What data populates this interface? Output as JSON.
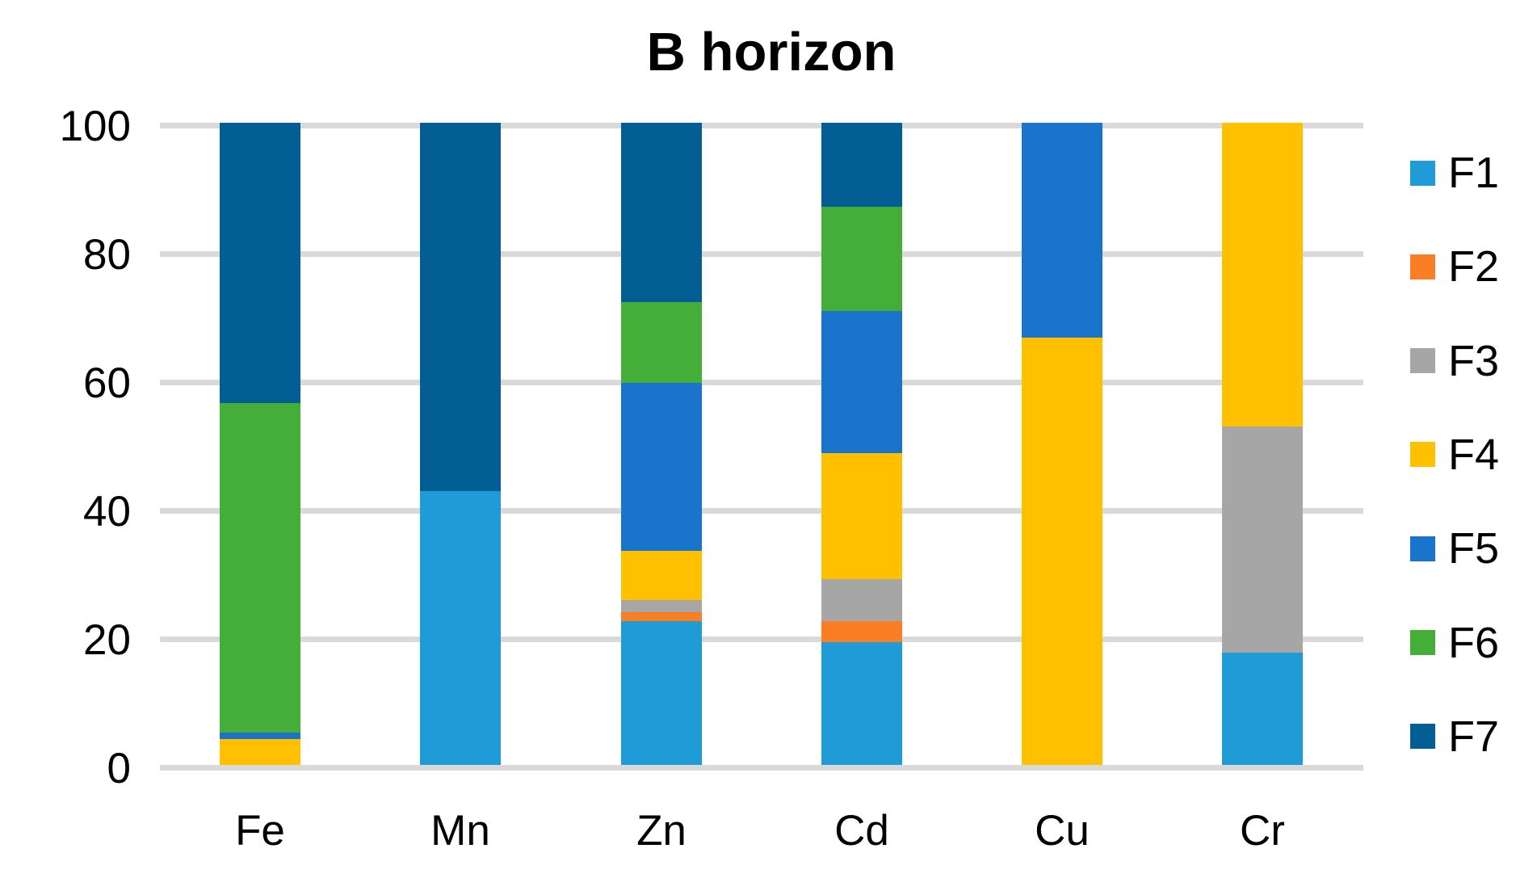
{
  "title": "B horizon",
  "chart_data": {
    "type": "bar",
    "subtype": "stacked-percent",
    "title": "B horizon",
    "xlabel": "",
    "ylabel": "",
    "categories": [
      "Fe",
      "Mn",
      "Zn",
      "Cd",
      "Cu",
      "Cr"
    ],
    "series": [
      {
        "name": "F1",
        "color": "#1f9cd8",
        "values": [
          0,
          42.6,
          22.4,
          19.1,
          0,
          17.5
        ]
      },
      {
        "name": "F2",
        "color": "#fb7d24",
        "values": [
          0,
          0,
          1.4,
          3.3,
          0,
          0
        ]
      },
      {
        "name": "F3",
        "color": "#a6a6a6",
        "values": [
          0,
          0,
          1.8,
          6.5,
          0,
          35.2
        ]
      },
      {
        "name": "F4",
        "color": "#ffc000",
        "values": [
          4.0,
          0,
          7.7,
          19.6,
          66.5,
          47.3
        ]
      },
      {
        "name": "F5",
        "color": "#1b74cc",
        "values": [
          1.0,
          0,
          26.2,
          22.2,
          33.5,
          0
        ]
      },
      {
        "name": "F6",
        "color": "#44ae39",
        "values": [
          51.3,
          0,
          12.6,
          16.2,
          0,
          0
        ]
      },
      {
        "name": "F7",
        "color": "#035e93",
        "values": [
          43.7,
          57.4,
          27.9,
          13.1,
          0,
          0
        ]
      }
    ],
    "ylim": [
      0,
      100
    ],
    "yticks": [
      0,
      20,
      40,
      60,
      80,
      100
    ],
    "grid": true,
    "gridline_color": "#d9d9d9",
    "legend_position": "right",
    "legend_entries": [
      "F1",
      "F2",
      "F3",
      "F4",
      "F5",
      "F6",
      "F7"
    ]
  }
}
